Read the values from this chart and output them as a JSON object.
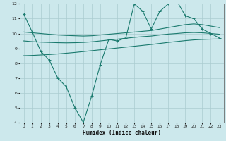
{
  "xlabel": "Humidex (Indice chaleur)",
  "background_color": "#cce8ec",
  "grid_color": "#aaccd0",
  "line_color": "#1a7a6e",
  "xlim": [
    -0.5,
    23.5
  ],
  "ylim": [
    4,
    12
  ],
  "yticks": [
    4,
    5,
    6,
    7,
    8,
    9,
    10,
    11,
    12
  ],
  "xticks": [
    0,
    1,
    2,
    3,
    4,
    5,
    6,
    7,
    8,
    9,
    10,
    11,
    12,
    13,
    14,
    15,
    16,
    17,
    18,
    19,
    20,
    21,
    22,
    23
  ],
  "line1_x": [
    0,
    1,
    2,
    3,
    4,
    5,
    6,
    7,
    8,
    9,
    10,
    11,
    12,
    13,
    14,
    15,
    16,
    17,
    18,
    19,
    20,
    21,
    22,
    23
  ],
  "line1_y": [
    11.3,
    10.1,
    8.8,
    8.2,
    7.0,
    6.4,
    5.0,
    4.0,
    5.8,
    7.9,
    9.6,
    9.5,
    9.7,
    12.0,
    11.5,
    10.3,
    11.5,
    12.0,
    12.2,
    11.2,
    11.0,
    10.3,
    10.0,
    9.7
  ],
  "line2_x": [
    0,
    1,
    2,
    3,
    4,
    5,
    6,
    7,
    8,
    9,
    10,
    11,
    12,
    13,
    14,
    15,
    16,
    17,
    18,
    19,
    20,
    21,
    22,
    23
  ],
  "line2_y": [
    10.1,
    10.05,
    10.0,
    9.95,
    9.9,
    9.87,
    9.85,
    9.83,
    9.85,
    9.9,
    9.95,
    10.0,
    10.05,
    10.1,
    10.15,
    10.2,
    10.3,
    10.4,
    10.5,
    10.6,
    10.65,
    10.6,
    10.5,
    10.4
  ],
  "line3_x": [
    0,
    1,
    2,
    3,
    4,
    5,
    6,
    7,
    8,
    9,
    10,
    11,
    12,
    13,
    14,
    15,
    16,
    17,
    18,
    19,
    20,
    21,
    22,
    23
  ],
  "line3_y": [
    9.5,
    9.45,
    9.42,
    9.4,
    9.38,
    9.37,
    9.38,
    9.4,
    9.44,
    9.5,
    9.56,
    9.62,
    9.68,
    9.74,
    9.79,
    9.83,
    9.9,
    9.96,
    10.0,
    10.05,
    10.07,
    10.05,
    10.0,
    9.95
  ],
  "line4_x": [
    0,
    1,
    2,
    3,
    4,
    5,
    6,
    7,
    8,
    9,
    10,
    11,
    12,
    13,
    14,
    15,
    16,
    17,
    18,
    19,
    20,
    21,
    22,
    23
  ],
  "line4_y": [
    8.5,
    8.52,
    8.55,
    8.58,
    8.62,
    8.67,
    8.72,
    8.78,
    8.84,
    8.9,
    8.96,
    9.02,
    9.08,
    9.14,
    9.2,
    9.26,
    9.33,
    9.4,
    9.46,
    9.52,
    9.57,
    9.6,
    9.62,
    9.63
  ]
}
